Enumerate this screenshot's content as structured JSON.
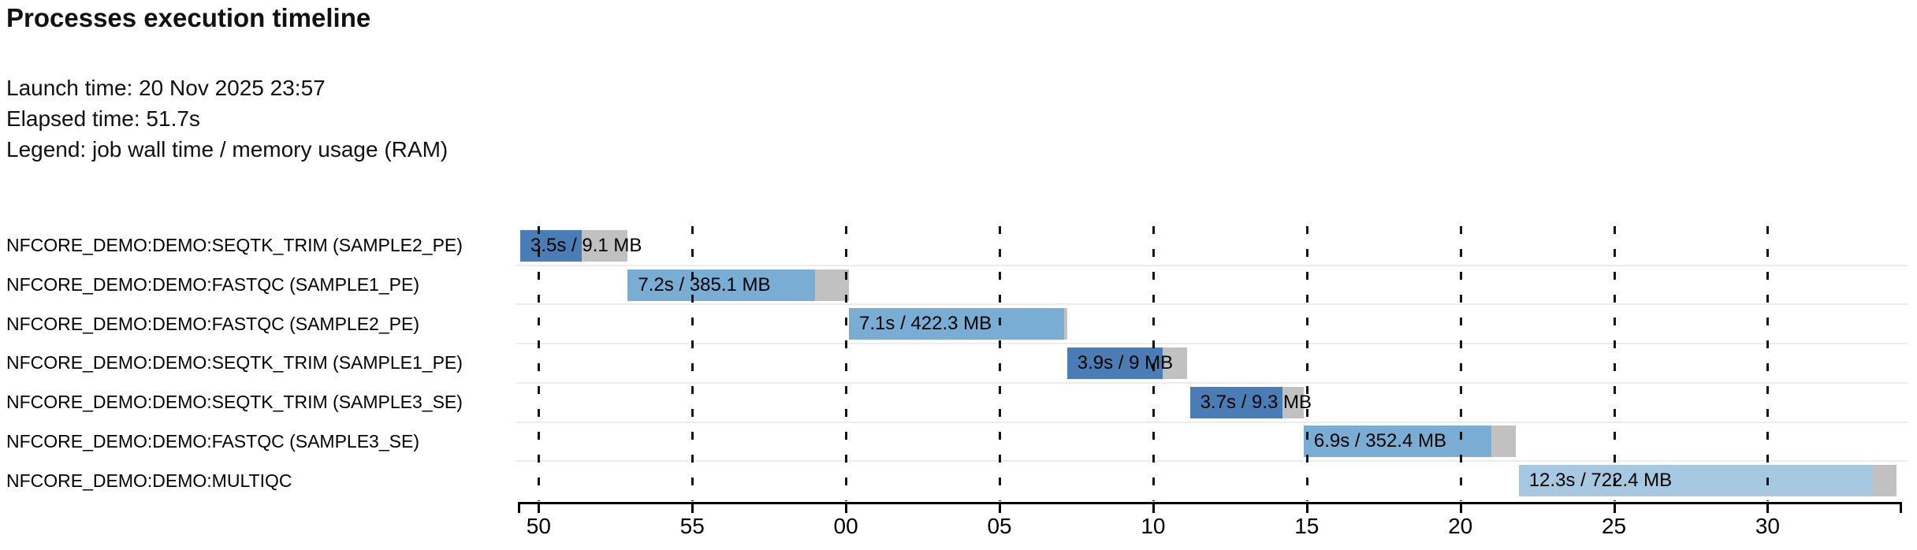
{
  "header": {
    "title": "Processes execution timeline",
    "launch_time": "Launch time: 20 Nov 2025 23:57",
    "elapsed_time": "Elapsed time: 51.7s",
    "legend": "Legend: job wall time / memory usage (RAM)"
  },
  "colors": {
    "SEQTK_TRIM": "#4a7cb5",
    "FASTQC": "#7aadd4",
    "MULTIQC": "#a6c8e1",
    "memory_tail": "#c1c1c1",
    "axis": "#000000",
    "grid_dash": "#141414",
    "row_separator": "#ececec",
    "bar_label_text": "#000000"
  },
  "chart_data": {
    "type": "gantt-timeline",
    "title": "Processes execution timeline",
    "time_axis": {
      "unit": "seconds (mm:ss wrap at minute 23:57 → 23:58)",
      "domain_start_s": 49.4,
      "domain_end_s": 94.3,
      "grid": true,
      "ticks": [
        {
          "t": 50,
          "label": "50"
        },
        {
          "t": 55,
          "label": "55"
        },
        {
          "t": 60,
          "label": "00"
        },
        {
          "t": 65,
          "label": "05"
        },
        {
          "t": 70,
          "label": "10"
        },
        {
          "t": 75,
          "label": "15"
        },
        {
          "t": 80,
          "label": "20"
        },
        {
          "t": 85,
          "label": "25"
        },
        {
          "t": 90,
          "label": "30"
        }
      ]
    },
    "tasks": [
      {
        "process": "NFCORE_DEMO:DEMO:SEQTK_TRIM (SAMPLE2_PE)",
        "group": "SEQTK_TRIM",
        "start_s": 49.4,
        "split_s": 51.4,
        "end_s": 52.9,
        "label": "3.5s / 9.1 MB",
        "wall_time": "3.5s",
        "memory": "9.1 MB"
      },
      {
        "process": "NFCORE_DEMO:DEMO:FASTQC (SAMPLE1_PE)",
        "group": "FASTQC",
        "start_s": 52.9,
        "split_s": 59.0,
        "end_s": 60.1,
        "label": "7.2s / 385.1 MB",
        "wall_time": "7.2s",
        "memory": "385.1 MB"
      },
      {
        "process": "NFCORE_DEMO:DEMO:FASTQC (SAMPLE2_PE)",
        "group": "FASTQC",
        "start_s": 60.1,
        "split_s": 67.1,
        "end_s": 67.2,
        "label": "7.1s / 422.3 MB",
        "wall_time": "7.1s",
        "memory": "422.3 MB"
      },
      {
        "process": "NFCORE_DEMO:DEMO:SEQTK_TRIM (SAMPLE1_PE)",
        "group": "SEQTK_TRIM",
        "start_s": 67.2,
        "split_s": 70.3,
        "end_s": 71.1,
        "label": "3.9s / 9 MB",
        "wall_time": "3.9s",
        "memory": "9 MB"
      },
      {
        "process": "NFCORE_DEMO:DEMO:SEQTK_TRIM (SAMPLE3_SE)",
        "group": "SEQTK_TRIM",
        "start_s": 71.2,
        "split_s": 74.2,
        "end_s": 74.9,
        "label": "3.7s / 9.3 MB",
        "wall_time": "3.7s",
        "memory": "9.3 MB"
      },
      {
        "process": "NFCORE_DEMO:DEMO:FASTQC (SAMPLE3_SE)",
        "group": "FASTQC",
        "start_s": 74.9,
        "split_s": 81.0,
        "end_s": 81.8,
        "label": "6.9s / 352.4 MB",
        "wall_time": "6.9s",
        "memory": "352.4 MB"
      },
      {
        "process": "NFCORE_DEMO:DEMO:MULTIQC",
        "group": "MULTIQC",
        "start_s": 81.9,
        "split_s": 93.4,
        "end_s": 94.2,
        "label": "12.3s / 722.4 MB",
        "wall_time": "12.3s",
        "memory": "722.4 MB"
      }
    ]
  }
}
